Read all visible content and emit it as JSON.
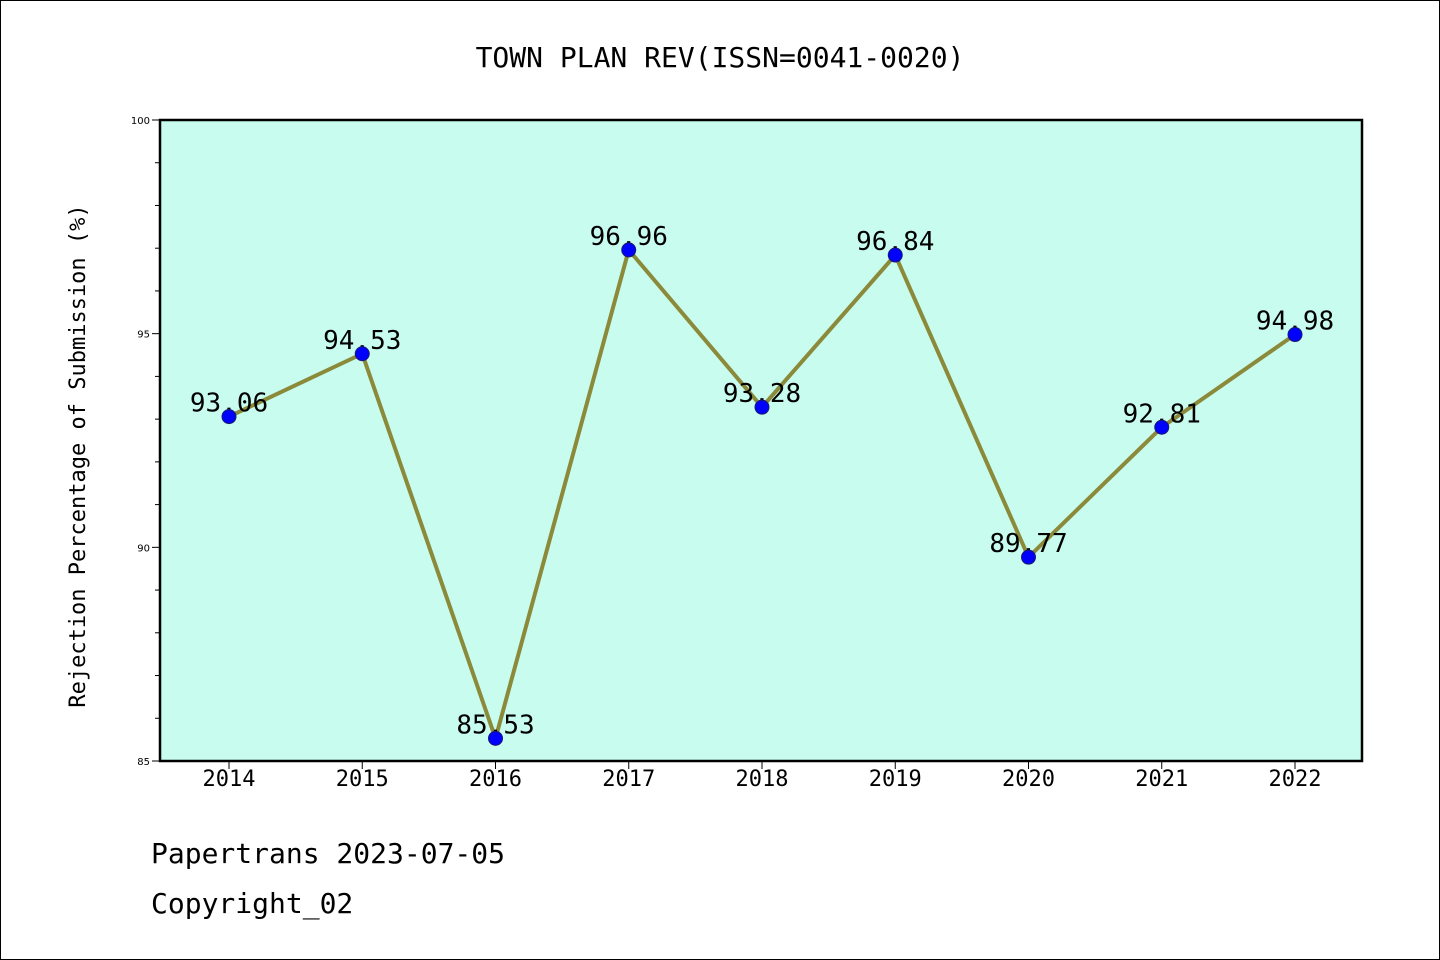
{
  "chart_data": {
    "type": "line",
    "title": "TOWN PLAN REV(ISSN=0041-0020)",
    "xlabel": "",
    "ylabel": "Rejection Percentage of Submission (%)",
    "categories": [
      "2014",
      "2015",
      "2016",
      "2017",
      "2018",
      "2019",
      "2020",
      "2021",
      "2022"
    ],
    "values": [
      93.06,
      94.53,
      85.53,
      96.96,
      93.28,
      96.84,
      89.77,
      92.81,
      94.98
    ],
    "data_labels": [
      "93.06",
      "94.53",
      "85.53",
      "96.96",
      "93.28",
      "96.84",
      "89.77",
      "92.81",
      "94.98"
    ],
    "ylim": [
      85,
      100
    ],
    "yticks": [
      85,
      90,
      95,
      100
    ],
    "ytick_labels": [
      "85",
      "90",
      "95",
      "100"
    ],
    "grid": false,
    "legend": "none",
    "colors": {
      "plot_background": "#c8fcee",
      "line": "#8b8a3a",
      "marker": "#0000ff",
      "marker_edge": "#1a1a6e",
      "axes": "#000000"
    }
  },
  "footer": {
    "line1": "Papertrans 2023-07-05",
    "line2": "Copyright_02"
  }
}
